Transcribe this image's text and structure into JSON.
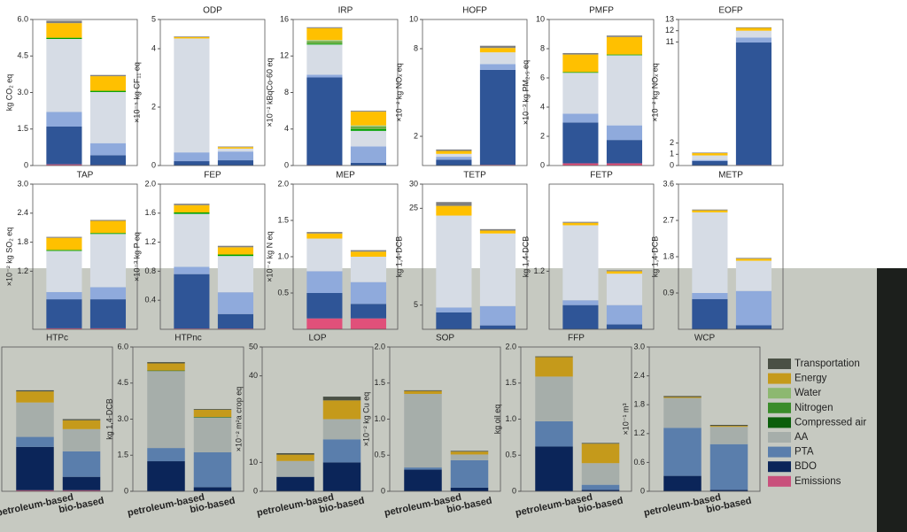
{
  "legend": {
    "names": [
      "Transportation",
      "Energy",
      "Water",
      "Nitrogen",
      "Compressed air",
      "AA",
      "PTA",
      "BDO",
      "Emissions"
    ],
    "colors": [
      "#4a5045",
      "#c59a1b",
      "#8db870",
      "#3a8c2a",
      "#0b5e0b",
      "#a6aeaa",
      "#5a7eac",
      "#0b2559",
      "#c9507c"
    ]
  },
  "chart_data": [
    {
      "type": "bar",
      "ylabel": "kg CO₂ eq",
      "ylim": [
        0,
        6
      ],
      "yticks": [
        0,
        1.5,
        {
          "value": 3,
          "label": "3.0"
        },
        4.5,
        {
          "value": 6,
          "label": "6.0"
        }
      ],
      "categories": [
        null,
        null
      ],
      "colors": [
        "#7f7f7f",
        "#ffc000",
        "#a9d18e",
        "#70ad47",
        "#00a000",
        "#d6dce5",
        "#8faadc",
        "#2f5597",
        "#e0507a"
      ],
      "values": [
        [
          0.1,
          0.6,
          0,
          0,
          0.05,
          3.0,
          0.6,
          1.55,
          0.05
        ],
        [
          0.05,
          0.6,
          0,
          0,
          0.05,
          2.1,
          0.5,
          0.4,
          0.02
        ]
      ]
    },
    {
      "type": "bar",
      "title": "ODP",
      "ylabel": "×10⁻⁵ kg CF₁₁ eq",
      "ylim": [
        0,
        5
      ],
      "yticks": [
        0,
        2,
        4,
        5
      ],
      "categories": [
        null,
        null
      ],
      "colors": [
        "#7f7f7f",
        "#ffc000",
        "#a9d18e",
        "#70ad47",
        "#00a000",
        "#d6dce5",
        "#8faadc",
        "#2f5597",
        "#e0507a"
      ],
      "values": [
        [
          0.02,
          0.05,
          0,
          0,
          0,
          3.9,
          0.3,
          0.15,
          0
        ],
        [
          0.02,
          0.05,
          0,
          0,
          0,
          0.1,
          0.3,
          0.18,
          0
        ]
      ]
    },
    {
      "type": "bar",
      "title": "IRP",
      "ylabel": "×10⁻² kBqCo-60 eq",
      "ylim": [
        0,
        16
      ],
      "yticks": [
        0,
        4,
        8,
        12,
        16
      ],
      "categories": [
        null,
        null
      ],
      "colors": [
        "#7f7f7f",
        "#ffc000",
        "#a9d18e",
        "#70ad47",
        "#00a000",
        "#d6dce5",
        "#8faadc",
        "#2f5597",
        "#e0507a"
      ],
      "values": [
        [
          0.1,
          1.3,
          0.1,
          0.3,
          0.1,
          3.3,
          0.3,
          9.6,
          0.05
        ],
        [
          0.1,
          1.5,
          0.1,
          0.3,
          0.2,
          1.7,
          1.8,
          0.3,
          0
        ]
      ]
    },
    {
      "type": "bar",
      "title": "HOFP",
      "ylabel": "×10⁻² kg NOₓ eq",
      "ylim": [
        0,
        10
      ],
      "yticks": [
        2,
        8,
        10
      ],
      "categories": [
        null,
        null
      ],
      "colors": [
        "#7f7f7f",
        "#ffc000",
        "#a9d18e",
        "#70ad47",
        "#00a000",
        "#d6dce5",
        "#8faadc",
        "#2f5597",
        "#e0507a"
      ],
      "values": [
        [
          0.1,
          0.2,
          0,
          0,
          0,
          0.2,
          0.2,
          0.4,
          0
        ],
        [
          0.15,
          0.3,
          0,
          0,
          0,
          0.8,
          0.4,
          6.5,
          0.05
        ]
      ]
    },
    {
      "type": "bar",
      "title": "PMFP",
      "ylabel": "×10⁻³ kg PM₂.₅ eq",
      "ylim": [
        0,
        10
      ],
      "yticks": [
        0,
        2,
        4,
        6,
        8,
        10
      ],
      "categories": [
        null,
        null
      ],
      "colors": [
        "#7f7f7f",
        "#ffc000",
        "#a9d18e",
        "#70ad47",
        "#00a000",
        "#d6dce5",
        "#8faadc",
        "#2f5597",
        "#e0507a"
      ],
      "values": [
        [
          0.1,
          1.2,
          0,
          0,
          0.05,
          2.8,
          0.6,
          2.8,
          0.15
        ],
        [
          0.1,
          1.2,
          0,
          0,
          0.05,
          4.8,
          1.0,
          1.6,
          0.15
        ]
      ]
    },
    {
      "type": "bar",
      "title": "EOFP",
      "ylabel": "×10⁻² kg NOₓ eq",
      "ylim": [
        0,
        13
      ],
      "yticks": [
        0,
        1,
        2,
        11,
        12,
        13
      ],
      "categories": [
        null,
        null
      ],
      "colors": [
        "#7f7f7f",
        "#ffc000",
        "#a9d18e",
        "#70ad47",
        "#00a000",
        "#d6dce5",
        "#8faadc",
        "#2f5597",
        "#e0507a"
      ],
      "values": [
        [
          0.05,
          0.2,
          0,
          0,
          0,
          0.4,
          0.1,
          0.4,
          0
        ],
        [
          0.05,
          0.25,
          0,
          0,
          0,
          0.6,
          0.45,
          10.9,
          0.05
        ]
      ]
    },
    {
      "type": "bar",
      "title": "TAP",
      "ylabel": "×10⁻² kg SO₂ eq",
      "ylim": [
        0,
        3
      ],
      "yticks": [
        1.2,
        1.8,
        2.4,
        {
          "value": 3,
          "label": "3.0"
        }
      ],
      "categories": [
        null,
        null
      ],
      "colors": [
        "#7f7f7f",
        "#ffc000",
        "#a9d18e",
        "#70ad47",
        "#00a000",
        "#d6dce5",
        "#8faadc",
        "#2f5597",
        "#e0507a"
      ],
      "values": [
        [
          0.02,
          0.25,
          0,
          0,
          0.02,
          0.85,
          0.15,
          0.6,
          0.02
        ],
        [
          0.02,
          0.25,
          0,
          0,
          0.02,
          1.1,
          0.25,
          0.6,
          0.02
        ]
      ]
    },
    {
      "type": "bar",
      "title": "FEP",
      "ylabel": "×10⁻³ kg P eq",
      "ylim": [
        0,
        2
      ],
      "yticks": [
        0.4,
        0.8,
        1.2,
        1.6,
        {
          "value": 2,
          "label": "2.0"
        }
      ],
      "categories": [
        null,
        null
      ],
      "colors": [
        "#7f7f7f",
        "#ffc000",
        "#a9d18e",
        "#70ad47",
        "#00a000",
        "#d6dce5",
        "#8faadc",
        "#2f5597",
        "#e0507a"
      ],
      "values": [
        [
          0.02,
          0.1,
          0,
          0,
          0.02,
          0.73,
          0.1,
          0.75,
          0.01
        ],
        [
          0.02,
          0.1,
          0,
          0,
          0.02,
          0.5,
          0.3,
          0.2,
          0.01
        ]
      ]
    },
    {
      "type": "bar",
      "title": "MEP",
      "ylabel": "×10⁻⁴ kg N eq",
      "ylim": [
        0,
        2
      ],
      "yticks": [
        0.5,
        {
          "value": 1,
          "label": "1.0"
        },
        1.5,
        {
          "value": 2,
          "label": "2.0"
        }
      ],
      "categories": [
        null,
        null
      ],
      "colors": [
        "#7f7f7f",
        "#ffc000",
        "#a9d18e",
        "#70ad47",
        "#00a000",
        "#d6dce5",
        "#8faadc",
        "#2f5597",
        "#e0507a"
      ],
      "values": [
        [
          0.02,
          0.07,
          0,
          0,
          0,
          0.45,
          0.3,
          0.35,
          0.15
        ],
        [
          0.02,
          0.07,
          0,
          0,
          0,
          0.35,
          0.3,
          0.2,
          0.15
        ]
      ]
    },
    {
      "type": "bar",
      "title": "TETP",
      "ylabel": "kg 1,4-DCB",
      "ylim": [
        0,
        30
      ],
      "yticks": [
        5,
        25,
        30
      ],
      "categories": [
        null,
        null
      ],
      "colors": [
        "#7f7f7f",
        "#ffc000",
        "#a9d18e",
        "#70ad47",
        "#00a000",
        "#d6dce5",
        "#8faadc",
        "#2f5597",
        "#e0507a"
      ],
      "values": [
        [
          0.8,
          2,
          0,
          0,
          0,
          19,
          1,
          3.5,
          0
        ],
        [
          0.3,
          0.6,
          0,
          0,
          0,
          15,
          4,
          0.8,
          0
        ]
      ]
    },
    {
      "type": "bar",
      "title": "FETP",
      "ylabel": "kg 1,4-DCB",
      "ylim": [
        0,
        3
      ],
      "yticks": [
        1.2
      ],
      "categories": [
        null,
        null
      ],
      "colors": [
        "#7f7f7f",
        "#ffc000",
        "#a9d18e",
        "#70ad47",
        "#00a000",
        "#d6dce5",
        "#8faadc",
        "#2f5597",
        "#e0507a"
      ],
      "values": [
        [
          0.02,
          0.05,
          0,
          0,
          0,
          1.55,
          0.1,
          0.5,
          0
        ],
        [
          0.02,
          0.05,
          0,
          0,
          0,
          0.65,
          0.4,
          0.1,
          0
        ]
      ]
    },
    {
      "type": "bar",
      "title": "METP",
      "ylabel": "kg 1,4-DCB",
      "ylim": [
        0,
        3.6
      ],
      "yticks": [
        0.9,
        1.8,
        2.7,
        3.6
      ],
      "categories": [
        null,
        null
      ],
      "colors": [
        "#7f7f7f",
        "#ffc000",
        "#a9d18e",
        "#70ad47",
        "#00a000",
        "#d6dce5",
        "#8faadc",
        "#2f5597",
        "#e0507a"
      ],
      "values": [
        [
          0.02,
          0.05,
          0,
          0,
          0,
          2.0,
          0.15,
          0.75,
          0
        ],
        [
          0.02,
          0.05,
          0,
          0,
          0,
          0.75,
          0.85,
          0.1,
          0
        ]
      ]
    },
    {
      "type": "bar",
      "title": "HTPc",
      "ylim": [
        0,
        1.3
      ],
      "yticks": [],
      "categories": [
        "petroleum-based",
        "bio-based"
      ],
      "colors": [
        "#4a5045",
        "#c59a1b",
        "#8db870",
        "#3a8c2a",
        "#0b5e0b",
        "#a6aeaa",
        "#5a7eac",
        "#0b2559",
        "#c9507c"
      ],
      "values": [
        [
          0.01,
          0.1,
          0,
          0,
          0,
          0.31,
          0.09,
          0.39,
          0.01
        ],
        [
          0.01,
          0.08,
          0,
          0,
          0,
          0.2,
          0.23,
          0.12,
          0.01
        ]
      ]
    },
    {
      "type": "bar",
      "title": "HTPnc",
      "ylabel": "kg 1,4-DCB",
      "ylim": [
        0,
        6
      ],
      "yticks": [
        0,
        1.5,
        {
          "value": 3,
          "label": "3.0"
        },
        4.5,
        {
          "value": 6,
          "label": "6.0"
        }
      ],
      "categories": [
        "petroleum-based",
        "bio-based"
      ],
      "colors": [
        "#4a5045",
        "#c59a1b",
        "#8db870",
        "#3a8c2a",
        "#0b5e0b",
        "#a6aeaa",
        "#5a7eac",
        "#0b2559",
        "#c9507c"
      ],
      "values": [
        [
          0.05,
          0.3,
          0,
          0,
          0.02,
          3.2,
          0.55,
          1.25,
          0
        ],
        [
          0.03,
          0.3,
          0,
          0,
          0.02,
          1.45,
          1.45,
          0.17,
          0
        ]
      ]
    },
    {
      "type": "bar",
      "title": "LOP",
      "ylabel": "×10⁻² m²a crop eq",
      "ylim": [
        0,
        50
      ],
      "yticks": [
        0,
        10,
        40,
        50
      ],
      "categories": [
        "petroleum-based",
        "bio-based"
      ],
      "colors": [
        "#4a5045",
        "#c59a1b",
        "#8db870",
        "#3a8c2a",
        "#0b5e0b",
        "#a6aeaa",
        "#5a7eac",
        "#0b2559",
        "#c9507c"
      ],
      "values": [
        [
          0.5,
          2.2,
          0,
          0,
          0,
          5.5,
          0,
          5,
          0
        ],
        [
          1.3,
          6.5,
          0,
          0,
          0,
          7,
          8,
          10,
          0
        ]
      ]
    },
    {
      "type": "bar",
      "title": "SOP",
      "ylabel": "×10⁻² kg Cu eq",
      "ylim": [
        0,
        2
      ],
      "yticks": [
        0,
        0.5,
        {
          "value": 1,
          "label": "1.0"
        },
        1.5,
        {
          "value": 2,
          "label": "2.0"
        }
      ],
      "categories": [
        "petroleum-based",
        "bio-based"
      ],
      "colors": [
        "#4a5045",
        "#c59a1b",
        "#8db870",
        "#3a8c2a",
        "#0b5e0b",
        "#a6aeaa",
        "#5a7eac",
        "#0b2559",
        "#c9507c"
      ],
      "values": [
        [
          0.01,
          0.04,
          0,
          0,
          0,
          1.02,
          0.03,
          0.3,
          0
        ],
        [
          0.01,
          0.04,
          0,
          0,
          0,
          0.08,
          0.38,
          0.05,
          0
        ]
      ]
    },
    {
      "type": "bar",
      "title": "FFP",
      "ylabel": "kg oil eq",
      "ylim": [
        0,
        2
      ],
      "yticks": [
        0,
        0.5,
        {
          "value": 1,
          "label": "1.0"
        },
        1.5,
        {
          "value": 2,
          "label": "2.0"
        }
      ],
      "categories": [
        "petroleum-based",
        "bio-based"
      ],
      "colors": [
        "#4a5045",
        "#c59a1b",
        "#8db870",
        "#3a8c2a",
        "#0b5e0b",
        "#a6aeaa",
        "#5a7eac",
        "#0b2559",
        "#c9507c"
      ],
      "values": [
        [
          0.01,
          0.27,
          0,
          0,
          0,
          0.62,
          0.35,
          0.62,
          0
        ],
        [
          0.01,
          0.27,
          0,
          0,
          0,
          0.3,
          0.07,
          0.02,
          0
        ]
      ]
    },
    {
      "type": "bar",
      "title": "WCP",
      "ylabel": "×10⁻¹ m³",
      "ylim": [
        0,
        3
      ],
      "yticks": [
        0,
        0.6,
        1.2,
        1.8,
        2.4,
        {
          "value": 3,
          "label": "3.0"
        }
      ],
      "categories": [
        "petroleum-based",
        "bio-based"
      ],
      "colors": [
        "#4a5045",
        "#c59a1b",
        "#8db870",
        "#3a8c2a",
        "#0b5e0b",
        "#a6aeaa",
        "#5a7eac",
        "#0b2559",
        "#c9507c"
      ],
      "values": [
        [
          0.02,
          0.02,
          0,
          0,
          0,
          0.62,
          1.0,
          0.32,
          0
        ],
        [
          0.02,
          0.02,
          0,
          0,
          0,
          0.36,
          0.95,
          0.03,
          0
        ]
      ]
    }
  ]
}
